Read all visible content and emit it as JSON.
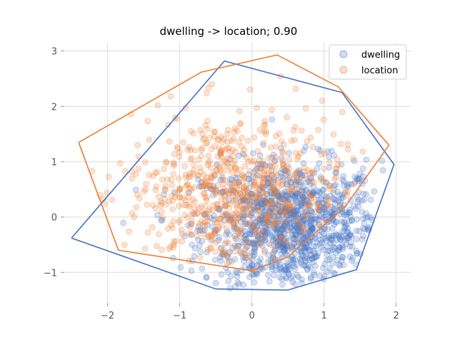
{
  "chart_data": {
    "type": "scatter",
    "title": "dwelling -> location; 0.90",
    "xlabel": "",
    "ylabel": "",
    "xlim": [
      -2.6,
      2.2
    ],
    "ylim": [
      -1.55,
      3.15
    ],
    "xticks": [
      -2,
      -1,
      0,
      1,
      2
    ],
    "yticks": [
      -1,
      0,
      1,
      2,
      3
    ],
    "grid": true,
    "legend_position": "top-right",
    "series": [
      {
        "name": "dwelling",
        "color": "#4472c4",
        "point_count_approx": 3000,
        "center": [
          0.55,
          -0.2
        ],
        "hull": [
          [
            -2.5,
            -0.38
          ],
          [
            -0.5,
            -1.3
          ],
          [
            0.5,
            -1.32
          ],
          [
            1.45,
            -0.95
          ],
          [
            1.97,
            0.95
          ],
          [
            1.25,
            2.25
          ],
          [
            -0.38,
            2.82
          ],
          [
            -2.5,
            -0.38
          ]
        ]
      },
      {
        "name": "location",
        "color": "#ed7d31",
        "point_count_approx": 1500,
        "center": [
          -0.25,
          0.45
        ],
        "hull": [
          [
            -2.4,
            1.35
          ],
          [
            -0.7,
            2.62
          ],
          [
            0.35,
            2.93
          ],
          [
            1.2,
            2.35
          ],
          [
            1.9,
            1.3
          ],
          [
            1.3,
            0.2
          ],
          [
            0.5,
            -0.72
          ],
          [
            0.0,
            -0.97
          ],
          [
            -1.85,
            -0.6
          ],
          [
            -2.4,
            1.35
          ]
        ]
      }
    ]
  }
}
